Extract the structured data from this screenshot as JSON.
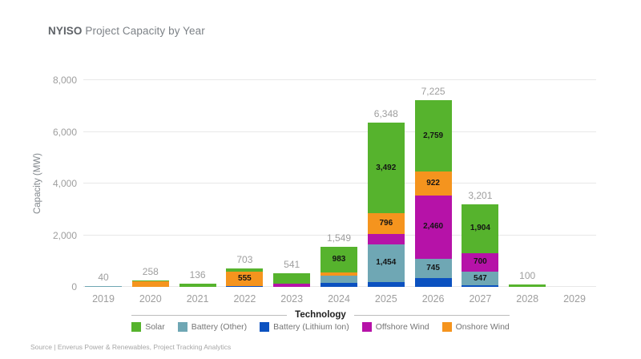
{
  "header": {
    "title_bold": "NYISO",
    "title_rest": " Project Capacity by Year"
  },
  "footer": {
    "source": "Source | Enverus Power & Renewables, Project Tracking Analytics"
  },
  "chart_data": {
    "type": "bar",
    "subtype": "stacked",
    "title": "NYISO Project Capacity by Year",
    "xlabel": "",
    "ylabel": "Capacity (MW)",
    "ylim": [
      0,
      8000
    ],
    "ytick_labels": [
      "0",
      "2,000",
      "4,000",
      "6,000",
      "8,000"
    ],
    "grid": "horizontal",
    "legend_title": "Technology",
    "legend_position": "bottom",
    "legend": [
      {
        "label": "Solar",
        "color": "#56b32d"
      },
      {
        "label": "Battery (Other)",
        "color": "#6fa7b4"
      },
      {
        "label": "Battery (Lithium Ion)",
        "color": "#0b51c0"
      },
      {
        "label": "Offshore Wind",
        "color": "#b612a8"
      },
      {
        "label": "Onshore Wind",
        "color": "#f5941e"
      }
    ],
    "colors": {
      "Solar": "#56b32d",
      "Battery (Other)": "#6fa7b4",
      "Battery (Lithium Ion)": "#0b51c0",
      "Offshore Wind": "#b612a8",
      "Onshore Wind": "#f5941e"
    },
    "categories": [
      "2019",
      "2020",
      "2021",
      "2022",
      "2023",
      "2024",
      "2025",
      "2026",
      "2027",
      "2028",
      "2029"
    ],
    "bars": [
      {
        "year": "2019",
        "total": 40,
        "total_label": "40",
        "segments": [
          {
            "tech": "Battery (Other)",
            "value": 40,
            "label": null
          }
        ]
      },
      {
        "year": "2020",
        "total": 258,
        "total_label": "258",
        "segments": [
          {
            "tech": "Onshore Wind",
            "value": 238,
            "label": null
          },
          {
            "tech": "Solar",
            "value": 20,
            "label": null
          }
        ]
      },
      {
        "year": "2021",
        "total": 136,
        "total_label": "136",
        "segments": [
          {
            "tech": "Solar",
            "value": 136,
            "label": null
          }
        ]
      },
      {
        "year": "2022",
        "total": 703,
        "total_label": "703",
        "segments": [
          {
            "tech": "Battery (Lithium Ion)",
            "value": 46,
            "label": null
          },
          {
            "tech": "Onshore Wind",
            "value": 555,
            "label": "555"
          },
          {
            "tech": "Solar",
            "value": 102,
            "label": null
          }
        ]
      },
      {
        "year": "2023",
        "total": 541,
        "total_label": "541",
        "segments": [
          {
            "tech": "Offshore Wind",
            "value": 130,
            "label": null
          },
          {
            "tech": "Solar",
            "value": 411,
            "label": null
          }
        ]
      },
      {
        "year": "2024",
        "total": 1549,
        "total_label": "1,549",
        "segments": [
          {
            "tech": "Battery (Lithium Ion)",
            "value": 155,
            "label": null
          },
          {
            "tech": "Battery (Other)",
            "value": 295,
            "label": null
          },
          {
            "tech": "Onshore Wind",
            "value": 116,
            "label": null
          },
          {
            "tech": "Solar",
            "value": 983,
            "label": "983"
          }
        ]
      },
      {
        "year": "2025",
        "total": 6348,
        "total_label": "6,348",
        "segments": [
          {
            "tech": "Battery (Lithium Ion)",
            "value": 190,
            "label": null
          },
          {
            "tech": "Battery (Other)",
            "value": 1454,
            "label": "1,454"
          },
          {
            "tech": "Offshore Wind",
            "value": 416,
            "label": null
          },
          {
            "tech": "Onshore Wind",
            "value": 796,
            "label": "796"
          },
          {
            "tech": "Solar",
            "value": 3492,
            "label": "3,492"
          }
        ]
      },
      {
        "year": "2026",
        "total": 7225,
        "total_label": "7,225",
        "segments": [
          {
            "tech": "Battery (Lithium Ion)",
            "value": 339,
            "label": null
          },
          {
            "tech": "Battery (Other)",
            "value": 745,
            "label": "745"
          },
          {
            "tech": "Offshore Wind",
            "value": 2460,
            "label": "2,460"
          },
          {
            "tech": "Onshore Wind",
            "value": 922,
            "label": "922"
          },
          {
            "tech": "Solar",
            "value": 2759,
            "label": "2,759"
          }
        ]
      },
      {
        "year": "2027",
        "total": 3201,
        "total_label": "3,201",
        "segments": [
          {
            "tech": "Battery (Lithium Ion)",
            "value": 50,
            "label": null
          },
          {
            "tech": "Battery (Other)",
            "value": 547,
            "label": "547"
          },
          {
            "tech": "Offshore Wind",
            "value": 700,
            "label": "700"
          },
          {
            "tech": "Solar",
            "value": 1904,
            "label": "1,904"
          }
        ]
      },
      {
        "year": "2028",
        "total": 100,
        "total_label": "100",
        "segments": [
          {
            "tech": "Solar",
            "value": 100,
            "label": null
          }
        ]
      },
      {
        "year": "2029",
        "total": 0,
        "total_label": null,
        "segments": []
      }
    ]
  }
}
